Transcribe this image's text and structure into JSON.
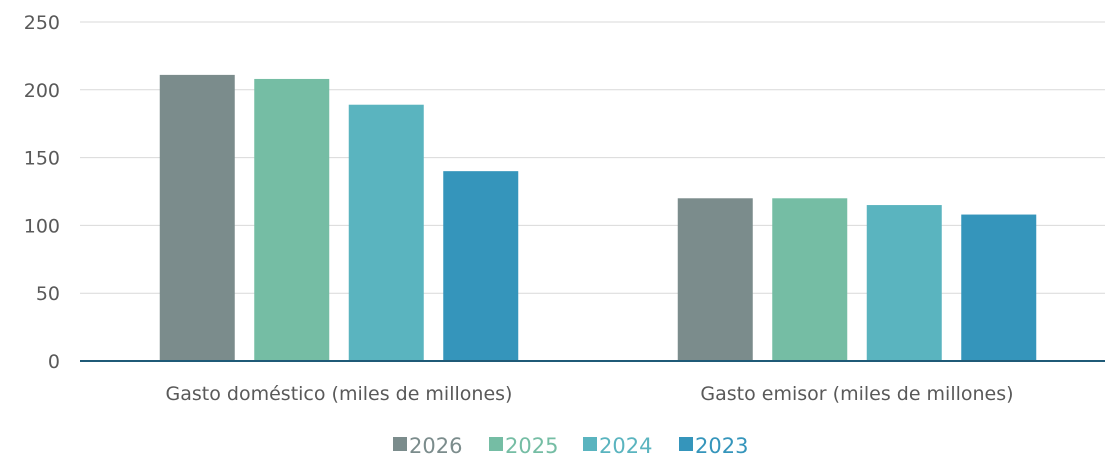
{
  "chart_data": {
    "type": "bar",
    "categories": [
      "Gasto doméstico (miles de millones)",
      "Gasto emisor (miles de millones)"
    ],
    "series": [
      {
        "name": "2026",
        "values": [
          211,
          120
        ],
        "color": "#7b8c8c"
      },
      {
        "name": "2025",
        "values": [
          208,
          120
        ],
        "color": "#75bda4"
      },
      {
        "name": "2024",
        "values": [
          189,
          115
        ],
        "color": "#5ab4bf"
      },
      {
        "name": "2023",
        "values": [
          140,
          108
        ],
        "color": "#3595bb"
      }
    ],
    "title": "",
    "xlabel": "",
    "ylabel": "",
    "ylim": [
      0,
      250
    ],
    "yticks": [
      "0",
      "50",
      "100",
      "150",
      "200",
      "250"
    ],
    "grid": true,
    "legend_position": "bottom"
  }
}
